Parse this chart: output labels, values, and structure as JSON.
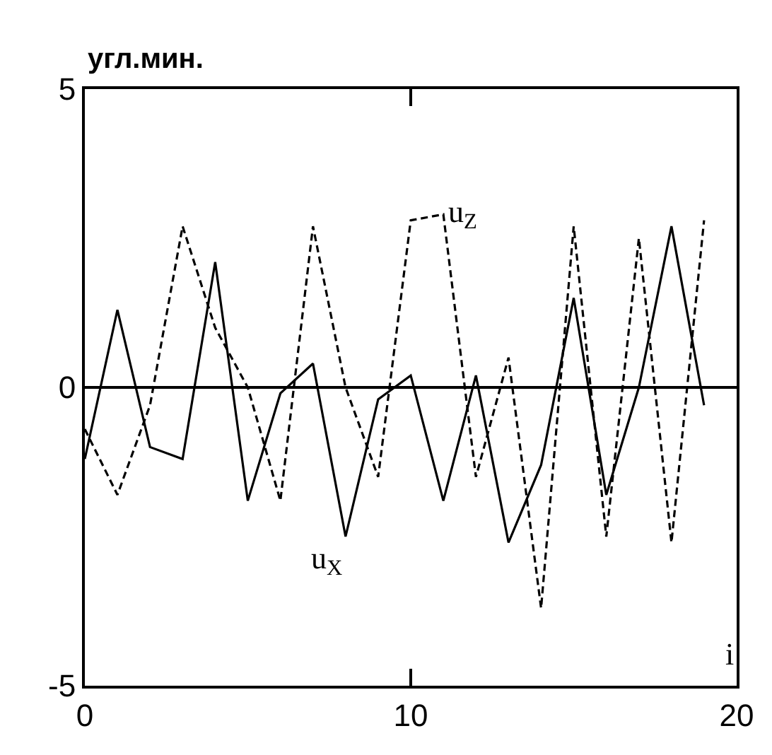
{
  "chart_data": {
    "type": "line",
    "ylabel": "угл.мин.",
    "xlabel": "i",
    "x": [
      0,
      1,
      2,
      3,
      4,
      5,
      6,
      7,
      8,
      9,
      10,
      11,
      12,
      13,
      14,
      15,
      16,
      17,
      18,
      19
    ],
    "series": [
      {
        "name": "u$_{X}$",
        "color": "#000000",
        "line_style": "solid",
        "values": [
          -1.2,
          1.3,
          -1.0,
          -1.2,
          2.1,
          -1.9,
          -0.1,
          0.4,
          -2.5,
          -0.2,
          0.2,
          -1.9,
          0.2,
          -2.6,
          -1.3,
          1.5,
          -1.8,
          0.0,
          2.7,
          -0.3
        ]
      },
      {
        "name": "u$_{Z}$",
        "color": "#000000",
        "line_style": "dashed",
        "values": [
          -0.7,
          -1.8,
          -0.3,
          2.7,
          1.0,
          0.0,
          -1.9,
          2.7,
          0.0,
          -1.5,
          2.8,
          2.9,
          -1.5,
          0.5,
          -3.7,
          2.7,
          -2.5,
          2.5,
          -2.6,
          2.8
        ]
      }
    ],
    "ref_lines": [
      {
        "axis": "y",
        "value": 0,
        "color": "#000000"
      }
    ],
    "xlim": [
      0,
      20
    ],
    "ylim": [
      -5,
      5
    ],
    "xticks": [
      0,
      10,
      20
    ],
    "yticks": [
      -5,
      0,
      5
    ],
    "legend": false,
    "marker": "none"
  }
}
